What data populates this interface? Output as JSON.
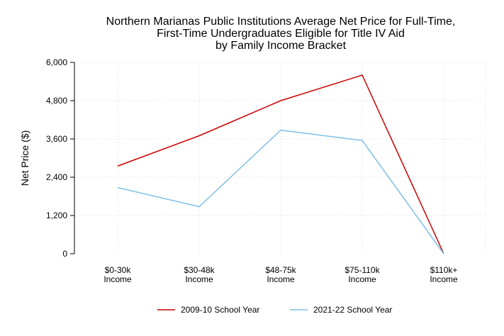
{
  "chart_data": {
    "type": "line",
    "title_lines": [
      "Northern Marianas Public Institutions Average Net Price for Full-Time,",
      "First-Time Undergraduates Eligible for Title IV Aid",
      "by Family Income Bracket"
    ],
    "xlabel": "",
    "ylabel": "Net Price ($)",
    "ylim": [
      0,
      6000
    ],
    "yticks": [
      0,
      1200,
      2400,
      3600,
      4800,
      6000
    ],
    "ytick_labels": [
      "0",
      "1,200",
      "2,400",
      "3,600",
      "4,800",
      "6,000"
    ],
    "categories": [
      [
        "$0-30k",
        "Income"
      ],
      [
        "$30-48k",
        "Income"
      ],
      [
        "$48-75k",
        "Income"
      ],
      [
        "$75-110k",
        "Income"
      ],
      [
        "$110k+",
        "Income"
      ]
    ],
    "series": [
      {
        "name": "2009-10 School Year",
        "color": "#cc0000",
        "values": [
          2750,
          3700,
          4800,
          5600,
          0
        ]
      },
      {
        "name": "2021-22 School Year",
        "color": "#7fbfe6",
        "values": [
          2075,
          1475,
          3875,
          3550,
          0
        ]
      }
    ],
    "grid": true,
    "legend_position": "bottom"
  }
}
